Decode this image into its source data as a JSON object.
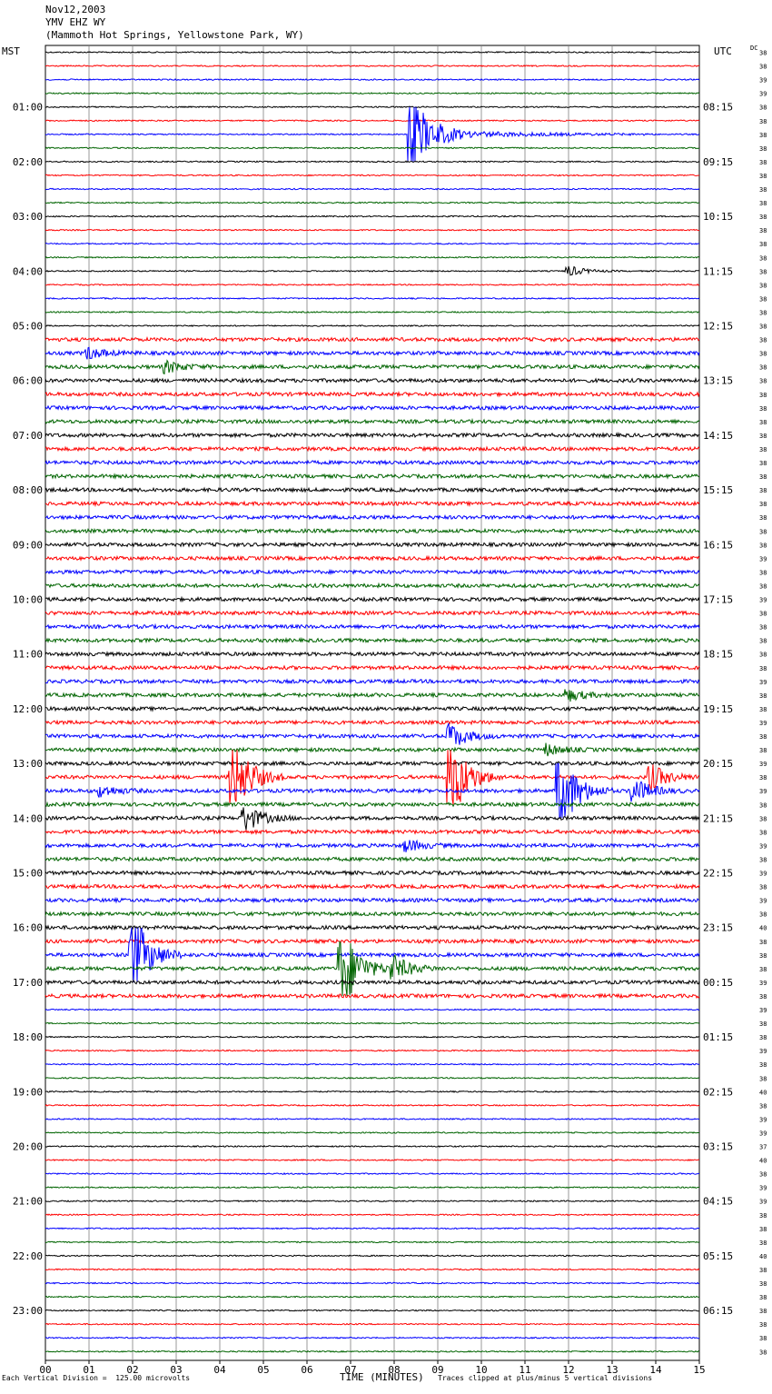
{
  "header": {
    "date": "Nov12,2003",
    "station": "YMV EHZ WY",
    "location": "(Mammoth Hot Springs, Yellowstone Park, WY)"
  },
  "left_timezone": "MST",
  "right_timezone": "UTC",
  "dc_label": "DC",
  "footer": {
    "scale_note": "Each Vertical Division =  125.00 microvolts",
    "xlabel": "TIME (MINUTES)",
    "clip_note": "Traces clipped at plus/minus 5 vertical divisions"
  },
  "colors": {
    "trace_cycle": [
      "#000000",
      "#ff0000",
      "#0000ff",
      "#006400"
    ],
    "grid": "#7f7f7f"
  },
  "chart_data": {
    "type": "line",
    "title": "Nov12,2003 YMV EHZ WY (Mammoth Hot Springs, Yellowstone Park, WY)",
    "xlabel": "TIME (MINUTES)",
    "xlim": [
      0,
      15
    ],
    "x_ticks": [
      "00",
      "01",
      "02",
      "03",
      "04",
      "05",
      "06",
      "07",
      "08",
      "09",
      "10",
      "11",
      "12",
      "13",
      "14",
      "15"
    ],
    "rows_per_hour": 4,
    "row_count": 96,
    "left_hour_labels": [
      "01:00",
      "02:00",
      "03:00",
      "04:00",
      "05:00",
      "06:00",
      "07:00",
      "08:00",
      "09:00",
      "10:00",
      "11:00",
      "12:00",
      "13:00",
      "14:00",
      "15:00",
      "16:00",
      "17:00",
      "18:00",
      "19:00",
      "20:00",
      "21:00",
      "22:00",
      "23:00"
    ],
    "right_hour_labels": [
      "08:15",
      "09:15",
      "10:15",
      "11:15",
      "12:15",
      "13:15",
      "14:15",
      "15:15",
      "16:15",
      "17:15",
      "18:15",
      "19:15",
      "20:15",
      "21:15",
      "22:15",
      "23:15",
      "00:15",
      "01:15",
      "02:15",
      "03:15",
      "04:15",
      "05:15",
      "06:15"
    ],
    "dc_offsets": [
      "38",
      "38",
      "39",
      "39",
      "38",
      "38",
      "38",
      "38",
      "38",
      "38",
      "38",
      "38",
      "38",
      "38",
      "38",
      "38",
      "38",
      "38",
      "38",
      "38",
      "38",
      "38",
      "38",
      "38",
      "38",
      "38",
      "38",
      "38",
      "38",
      "38",
      "38",
      "38",
      "38",
      "38",
      "38",
      "38",
      "38",
      "39",
      "38",
      "38",
      "39",
      "38",
      "38",
      "38",
      "38",
      "38",
      "39",
      "38",
      "38",
      "39",
      "38",
      "38",
      "39",
      "38",
      "39",
      "38",
      "38",
      "38",
      "39",
      "38",
      "39",
      "38",
      "39",
      "38",
      "40",
      "38",
      "38",
      "38",
      "39",
      "38",
      "39",
      "38",
      "38",
      "39",
      "38",
      "38",
      "40",
      "38",
      "39",
      "39",
      "37",
      "40",
      "38",
      "39",
      "39",
      "38",
      "38",
      "38",
      "40",
      "38",
      "38",
      "38",
      "38",
      "38",
      "38",
      "38"
    ],
    "events": [
      {
        "row": 6,
        "minute": 8.4,
        "amplitude": "clipped",
        "label": "large event"
      },
      {
        "row": 6,
        "minute": 9.0,
        "amplitude": "coda"
      },
      {
        "row": 16,
        "minute": 12.0,
        "amplitude": "moderate"
      },
      {
        "row": 22,
        "minute": 1.0,
        "amplitude": "moderate"
      },
      {
        "row": 23,
        "minute": 2.8,
        "amplitude": "moderate"
      },
      {
        "row": 47,
        "minute": 12.0,
        "amplitude": "moderate"
      },
      {
        "row": 50,
        "minute": 9.3,
        "amplitude": "large"
      },
      {
        "row": 51,
        "minute": 11.5,
        "amplitude": "moderate"
      },
      {
        "row": 53,
        "minute": 4.3,
        "amplitude": "clipped"
      },
      {
        "row": 53,
        "minute": 9.3,
        "amplitude": "clipped"
      },
      {
        "row": 53,
        "minute": 13.9,
        "amplitude": "large"
      },
      {
        "row": 54,
        "minute": 1.3,
        "amplitude": "moderate"
      },
      {
        "row": 54,
        "minute": 11.8,
        "amplitude": "clipped"
      },
      {
        "row": 54,
        "minute": 13.5,
        "amplitude": "large"
      },
      {
        "row": 56,
        "minute": 4.6,
        "amplitude": "large"
      },
      {
        "row": 58,
        "minute": 8.3,
        "amplitude": "moderate"
      },
      {
        "row": 66,
        "minute": 2.0,
        "amplitude": "clipped"
      },
      {
        "row": 67,
        "minute": 6.8,
        "amplitude": "clipped"
      },
      {
        "row": 67,
        "minute": 8.0,
        "amplitude": "large"
      }
    ]
  }
}
